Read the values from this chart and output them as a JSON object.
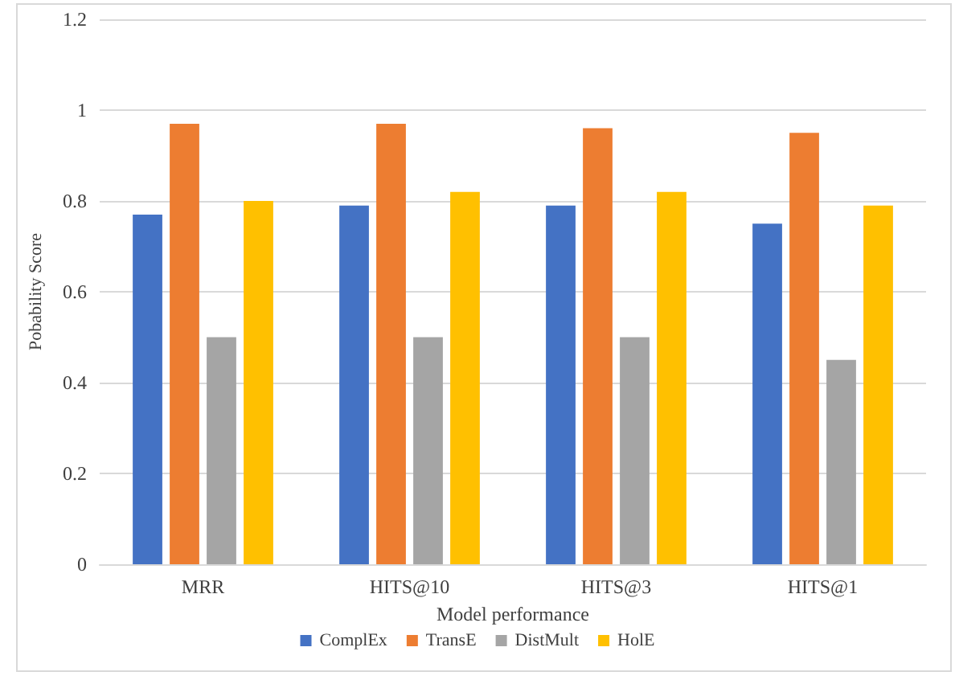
{
  "chart_data": {
    "type": "bar",
    "xlabel": "Model performance",
    "ylabel": "Pobability Score",
    "categories": [
      "MRR",
      "HITS@10",
      "HITS@3",
      "HITS@1"
    ],
    "series": [
      {
        "name": "ComplEx",
        "color": "#4472c4",
        "values": [
          0.77,
          0.79,
          0.79,
          0.75
        ]
      },
      {
        "name": "TransE",
        "color": "#ed7d31",
        "values": [
          0.97,
          0.97,
          0.96,
          0.95
        ]
      },
      {
        "name": "DistMult",
        "color": "#a5a5a5",
        "values": [
          0.5,
          0.5,
          0.5,
          0.45
        ]
      },
      {
        "name": "HolE",
        "color": "#ffc000",
        "values": [
          0.8,
          0.82,
          0.82,
          0.79
        ]
      }
    ],
    "ylim": [
      0,
      1.2
    ],
    "yticks": [
      0,
      0.2,
      0.4,
      0.6,
      0.8,
      1,
      1.2
    ],
    "grid": "y",
    "legend": "bottom"
  }
}
